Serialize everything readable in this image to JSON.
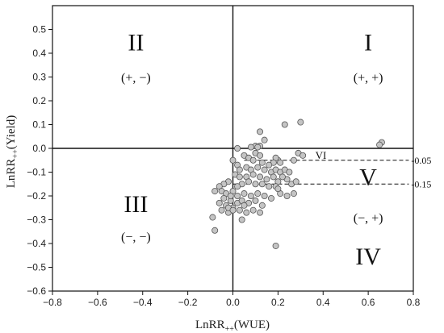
{
  "chart_data": {
    "type": "scatter",
    "title": "",
    "xlabel": "LnRR",
    "xlabel_sub": "++",
    "xlabel_suffix": "(WUE)",
    "ylabel": "LnRR",
    "ylabel_sub": "++",
    "ylabel_suffix": "(Yield)",
    "xlim": [
      -0.8,
      0.8
    ],
    "ylim": [
      -0.6,
      0.6
    ],
    "x_ticks": [
      -0.8,
      -0.6,
      -0.4,
      -0.2,
      0.0,
      0.2,
      0.4,
      0.6,
      0.8
    ],
    "x_tick_labels": [
      "−0.8",
      "−0.6",
      "−0.4",
      "−0.2",
      "0.0",
      "0.2",
      "0.4",
      "0.6",
      "0.8"
    ],
    "y_ticks": [
      0.5,
      0.4,
      0.3,
      0.2,
      0.1,
      0.0,
      -0.1,
      -0.2,
      -0.3,
      -0.4,
      -0.5,
      -0.6
    ],
    "y_tick_labels": [
      "0.5",
      "0.4",
      "0.3",
      "0.2",
      "0.1",
      "0.0",
      "−0.1",
      "−0.2",
      "−0.3",
      "−0.4",
      "−0.5",
      "−0.6"
    ],
    "grid": false,
    "marker_fill": "#c4c4c4",
    "marker_stroke": "#555555",
    "quadrants": [
      {
        "numeral": "I",
        "signs": "(+, +)",
        "x": 0.6,
        "y": 0.45,
        "sign_y": 0.3
      },
      {
        "numeral": "II",
        "signs": "(+, −)",
        "x": -0.43,
        "y": 0.45,
        "sign_y": 0.3
      },
      {
        "numeral": "III",
        "signs": "(−, −)",
        "x": -0.43,
        "y": -0.23,
        "sign_y": -0.37
      },
      {
        "numeral": "IV",
        "signs": "(−, +)",
        "x": 0.6,
        "y": -0.45,
        "sign_y": -0.29
      }
    ],
    "region_labels": [
      {
        "label": "V",
        "x": 0.6,
        "y": -0.12
      },
      {
        "label": "VI",
        "x": 0.39,
        "y": -0.03
      }
    ],
    "reference_lines": [
      {
        "y": -0.05,
        "x_start": 0.05,
        "x_end": 0.78,
        "label": "-0.05"
      },
      {
        "y": -0.15,
        "x_start": 0.0,
        "x_end": 0.78,
        "label": "-0.15"
      }
    ],
    "points": [
      [
        0.3,
        0.11
      ],
      [
        0.23,
        0.1
      ],
      [
        0.66,
        0.025
      ],
      [
        0.65,
        0.015
      ],
      [
        0.12,
        0.07
      ],
      [
        0.14,
        0.035
      ],
      [
        0.12,
        0.01
      ],
      [
        0.1,
        0.01
      ],
      [
        0.08,
        0.005
      ],
      [
        0.11,
        0.005
      ],
      [
        0.02,
        0.0
      ],
      [
        0.29,
        -0.02
      ],
      [
        0.31,
        -0.03
      ],
      [
        0.27,
        -0.05
      ],
      [
        0.2,
        -0.05
      ],
      [
        0.19,
        -0.04
      ],
      [
        0.21,
        -0.06
      ],
      [
        0.18,
        -0.06
      ],
      [
        0.1,
        -0.02
      ],
      [
        0.12,
        -0.03
      ],
      [
        0.05,
        -0.03
      ],
      [
        0.07,
        -0.04
      ],
      [
        0.09,
        -0.05
      ],
      [
        0.13,
        -0.06
      ],
      [
        0.16,
        -0.07
      ],
      [
        0.0,
        -0.05
      ],
      [
        0.02,
        -0.07
      ],
      [
        0.03,
        -0.09
      ],
      [
        0.06,
        -0.08
      ],
      [
        0.08,
        -0.09
      ],
      [
        0.11,
        -0.08
      ],
      [
        0.14,
        -0.09
      ],
      [
        0.17,
        -0.1
      ],
      [
        0.19,
        -0.09
      ],
      [
        0.21,
        -0.1
      ],
      [
        0.23,
        -0.09
      ],
      [
        0.25,
        -0.1
      ],
      [
        0.24,
        -0.13
      ],
      [
        0.22,
        -0.12
      ],
      [
        0.01,
        -0.11
      ],
      [
        0.03,
        -0.12
      ],
      [
        0.06,
        -0.12
      ],
      [
        0.09,
        -0.11
      ],
      [
        0.12,
        -0.12
      ],
      [
        0.15,
        -0.13
      ],
      [
        0.18,
        -0.12
      ],
      [
        0.2,
        -0.14
      ],
      [
        0.26,
        -0.15
      ],
      [
        0.28,
        -0.14
      ],
      [
        0.19,
        -0.16
      ],
      [
        0.16,
        -0.16
      ],
      [
        0.13,
        -0.15
      ],
      [
        0.1,
        -0.15
      ],
      [
        0.07,
        -0.14
      ],
      [
        0.04,
        -0.15
      ],
      [
        0.02,
        -0.16
      ],
      [
        -0.02,
        -0.14
      ],
      [
        -0.04,
        -0.15
      ],
      [
        -0.06,
        -0.16
      ],
      [
        -0.05,
        -0.18
      ],
      [
        -0.08,
        -0.18
      ],
      [
        -0.03,
        -0.19
      ],
      [
        0.0,
        -0.18
      ],
      [
        0.02,
        -0.2
      ],
      [
        0.05,
        -0.19
      ],
      [
        0.08,
        -0.2
      ],
      [
        0.11,
        -0.19
      ],
      [
        0.14,
        -0.2
      ],
      [
        0.17,
        -0.21
      ],
      [
        0.21,
        -0.19
      ],
      [
        0.24,
        -0.2
      ],
      [
        0.27,
        -0.19
      ],
      [
        0.2,
        -0.17
      ],
      [
        -0.01,
        -0.22
      ],
      [
        0.02,
        -0.23
      ],
      [
        0.04,
        -0.22
      ],
      [
        0.07,
        -0.23
      ],
      [
        0.1,
        -0.22
      ],
      [
        0.13,
        -0.24
      ],
      [
        -0.04,
        -0.21
      ],
      [
        -0.06,
        -0.23
      ],
      [
        -0.03,
        -0.24
      ],
      [
        0.0,
        -0.25
      ],
      [
        0.03,
        -0.26
      ],
      [
        0.06,
        -0.27
      ],
      [
        0.09,
        -0.26
      ],
      [
        0.12,
        -0.27
      ],
      [
        -0.02,
        -0.27
      ],
      [
        -0.05,
        -0.26
      ],
      [
        -0.02,
        -0.25
      ],
      [
        0.04,
        -0.3
      ],
      [
        0.0,
        -0.26
      ],
      [
        -0.09,
        -0.29
      ],
      [
        -0.08,
        -0.345
      ],
      [
        0.19,
        -0.41
      ],
      [
        -0.01,
        -0.2
      ],
      [
        0.05,
        -0.24
      ]
    ]
  }
}
